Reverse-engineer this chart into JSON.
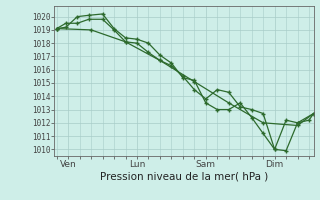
{
  "bg_color": "#ceeee8",
  "grid_color": "#a8ccc8",
  "line_color": "#2d6a2d",
  "title": "Pression niveau de la mer( hPa )",
  "x_tick_labels": [
    "Ven",
    "Lun",
    "Sam",
    "Dim"
  ],
  "x_tick_positions": [
    0.5,
    3.5,
    6.5,
    9.5
  ],
  "xlim": [
    -0.1,
    11.2
  ],
  "ylim": [
    1009.5,
    1020.8
  ],
  "yticks": [
    1010,
    1011,
    1012,
    1013,
    1014,
    1015,
    1016,
    1017,
    1018,
    1019,
    1020
  ],
  "series": [
    [
      0.0,
      1019.1,
      0.4,
      1019.2,
      0.9,
      1020.0,
      1.4,
      1020.1,
      2.0,
      1020.2,
      2.5,
      1019.1,
      3.0,
      1018.4,
      3.5,
      1018.3,
      4.0,
      1018.0,
      4.5,
      1017.1,
      5.0,
      1016.5,
      5.5,
      1015.4,
      6.0,
      1015.2,
      6.5,
      1013.5,
      7.0,
      1013.0,
      7.5,
      1013.0,
      8.0,
      1013.5,
      8.5,
      1012.4,
      9.0,
      1011.2,
      9.5,
      1010.0,
      10.0,
      1009.9,
      10.5,
      1012.0,
      11.0,
      1012.2,
      11.2,
      1012.7
    ],
    [
      0.0,
      1019.1,
      0.4,
      1019.5,
      0.9,
      1019.5,
      1.4,
      1019.8,
      2.0,
      1019.8,
      2.5,
      1019.0,
      3.0,
      1018.1,
      3.5,
      1018.0,
      4.0,
      1017.3,
      4.5,
      1016.7,
      5.0,
      1016.3,
      5.5,
      1015.5,
      6.0,
      1014.5,
      6.5,
      1013.8,
      7.0,
      1014.5,
      7.5,
      1014.3,
      8.0,
      1013.2,
      8.5,
      1013.0,
      9.0,
      1012.7,
      9.5,
      1010.0,
      10.0,
      1012.2,
      10.5,
      1012.0,
      11.2,
      1012.7
    ],
    [
      0.0,
      1019.1,
      1.5,
      1019.0,
      3.0,
      1018.1,
      4.5,
      1016.7,
      6.0,
      1015.1,
      7.5,
      1013.5,
      9.0,
      1012.0,
      10.5,
      1011.8,
      11.2,
      1012.7
    ]
  ]
}
